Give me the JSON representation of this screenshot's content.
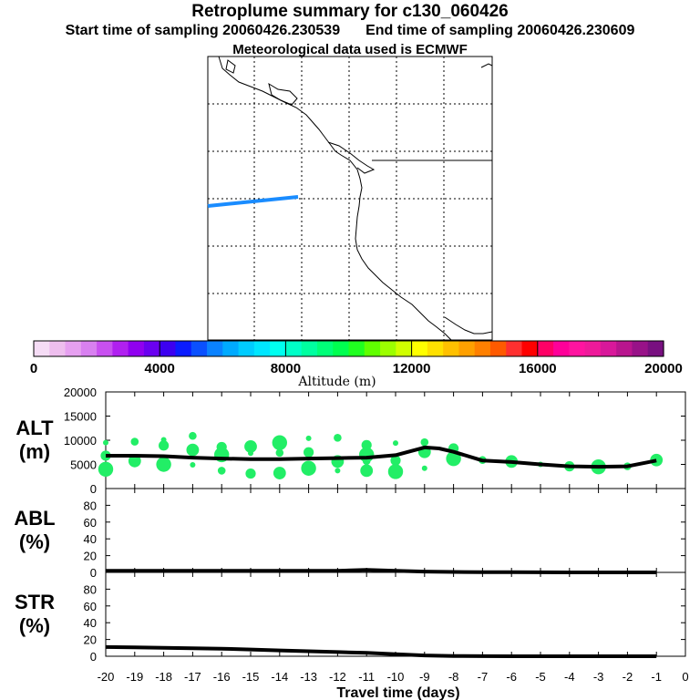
{
  "header": {
    "title": "Retroplume summary for c130_060426",
    "start_label": "Start time of sampling 20060426.230539",
    "end_label": "End time of sampling 20060426.230609",
    "met_label": "Meteorological data used is ECMWF"
  },
  "colors": {
    "plume": "#1a8cff",
    "dots": "#22ee66",
    "line": "#000000"
  },
  "colorbar": {
    "title": "Altitude (m)",
    "tick_labels": [
      "0",
      "4000",
      "8000",
      "12000",
      "16000",
      "20000"
    ],
    "colors": [
      "#f5dcf5",
      "#eebeee",
      "#e6a0f0",
      "#d880f0",
      "#c850f0",
      "#b020f0",
      "#9000f0",
      "#6a00f0",
      "#3c00f0",
      "#0a1cff",
      "#0a50ff",
      "#0a82ff",
      "#00aaff",
      "#00ccff",
      "#00e6ff",
      "#00fff0",
      "#00ffc8",
      "#00ffa0",
      "#00ff78",
      "#00ff50",
      "#20ff20",
      "#60ff00",
      "#9cff00",
      "#d0ff00",
      "#ffff00",
      "#ffe000",
      "#ffc000",
      "#ffa000",
      "#ff8000",
      "#ff5a00",
      "#ff3030",
      "#ff0000",
      "#ff0066",
      "#ff0099",
      "#ff14a0",
      "#ee1a9a",
      "#d8189a",
      "#b8158e",
      "#981288",
      "#781080"
    ]
  },
  "chart_data": [
    {
      "type": "scatter",
      "name": "ALT",
      "ylabel_line1": "ALT",
      "ylabel_line2": "(m)",
      "ylim": [
        0,
        20000
      ],
      "yticks": [
        "0",
        "5000",
        "10000",
        "15000",
        "20000"
      ],
      "series": [
        {
          "name": "mean altitude",
          "x": [
            -20,
            -19,
            -18,
            -17,
            -16,
            -15,
            -14,
            -13,
            -12,
            -11,
            -10,
            -9,
            -8.5,
            -8,
            -7,
            -6,
            -5,
            -4,
            -3,
            -2,
            -1
          ],
          "y": [
            6800,
            6800,
            6700,
            6400,
            6200,
            6100,
            6100,
            6200,
            6300,
            6400,
            6900,
            8500,
            8300,
            7600,
            5800,
            5500,
            5000,
            4600,
            4500,
            4600,
            5800
          ]
        },
        {
          "name": "plume clusters",
          "points": [
            {
              "x": -20,
              "y": 9500
            },
            {
              "x": -20,
              "y": 6800
            },
            {
              "x": -20,
              "y": 4000
            },
            {
              "x": -19,
              "y": 9700
            },
            {
              "x": -19,
              "y": 5700
            },
            {
              "x": -18,
              "y": 10100
            },
            {
              "x": -18,
              "y": 8900
            },
            {
              "x": -18,
              "y": 5000
            },
            {
              "x": -17,
              "y": 10900
            },
            {
              "x": -17,
              "y": 8000
            },
            {
              "x": -17,
              "y": 4900
            },
            {
              "x": -16,
              "y": 8600
            },
            {
              "x": -16,
              "y": 7000
            },
            {
              "x": -16,
              "y": 3700
            },
            {
              "x": -15,
              "y": 8700
            },
            {
              "x": -15,
              "y": 7300
            },
            {
              "x": -15,
              "y": 3100
            },
            {
              "x": -14,
              "y": 9500
            },
            {
              "x": -14,
              "y": 7400
            },
            {
              "x": -14,
              "y": 3200
            },
            {
              "x": -13,
              "y": 10400
            },
            {
              "x": -13,
              "y": 7500
            },
            {
              "x": -13,
              "y": 4200
            },
            {
              "x": -12,
              "y": 10500
            },
            {
              "x": -12,
              "y": 5600
            },
            {
              "x": -12,
              "y": 3700
            },
            {
              "x": -11,
              "y": 9000
            },
            {
              "x": -11,
              "y": 7000
            },
            {
              "x": -11,
              "y": 5700
            },
            {
              "x": -11,
              "y": 3700
            },
            {
              "x": -10,
              "y": 9400
            },
            {
              "x": -10,
              "y": 5800
            },
            {
              "x": -10,
              "y": 3500
            },
            {
              "x": -9,
              "y": 9600
            },
            {
              "x": -9,
              "y": 7600
            },
            {
              "x": -9,
              "y": 4200
            },
            {
              "x": -8,
              "y": 8300
            },
            {
              "x": -8,
              "y": 6200
            },
            {
              "x": -7,
              "y": 5900
            },
            {
              "x": -6,
              "y": 5600
            },
            {
              "x": -5,
              "y": 5000
            },
            {
              "x": -4,
              "y": 4600
            },
            {
              "x": -3,
              "y": 4500
            },
            {
              "x": -2,
              "y": 4600
            },
            {
              "x": -1,
              "y": 5900
            }
          ]
        }
      ]
    },
    {
      "type": "line",
      "name": "ABL",
      "ylabel_line1": "ABL",
      "ylabel_line2": "(%)",
      "ylim": [
        0,
        100
      ],
      "yticks": [
        "0",
        "20",
        "40",
        "60",
        "80"
      ],
      "series": [
        {
          "name": "ABL fraction",
          "x": [
            -20,
            -19,
            -18,
            -17,
            -16,
            -15,
            -14,
            -13,
            -12,
            -11,
            -10,
            -9,
            -8,
            -7,
            -6,
            -5,
            -4,
            -3,
            -2,
            -1
          ],
          "y": [
            2,
            2,
            2,
            2,
            2,
            2,
            2,
            2,
            2,
            3,
            2,
            1,
            0.5,
            0.3,
            0.2,
            0.1,
            0,
            0,
            0,
            0
          ]
        }
      ]
    },
    {
      "type": "line",
      "name": "STR",
      "ylabel_line1": "STR",
      "ylabel_line2": "(%)",
      "ylim": [
        0,
        100
      ],
      "yticks": [
        "0",
        "20",
        "40",
        "60",
        "80"
      ],
      "xlabel": "Travel time (days)",
      "xticks": [
        "-20",
        "-19",
        "-18",
        "-17",
        "-16",
        "-15",
        "-14",
        "-13",
        "-12",
        "-11",
        "-10",
        "-9",
        "-8",
        "-7",
        "-6",
        "-5",
        "-4",
        "-3",
        "-2",
        "-1",
        "0"
      ],
      "series": [
        {
          "name": "stratospheric fraction",
          "x": [
            -20,
            -19,
            -18,
            -17,
            -16,
            -15,
            -14,
            -13,
            -12,
            -11,
            -10,
            -9,
            -8,
            -7,
            -6,
            -5,
            -4,
            -3,
            -2,
            -1
          ],
          "y": [
            11,
            10.5,
            10,
            9.5,
            9,
            8,
            7,
            6,
            5,
            4,
            2.5,
            1,
            0.3,
            0.1,
            0,
            0,
            0,
            0,
            0,
            0
          ]
        }
      ]
    }
  ]
}
